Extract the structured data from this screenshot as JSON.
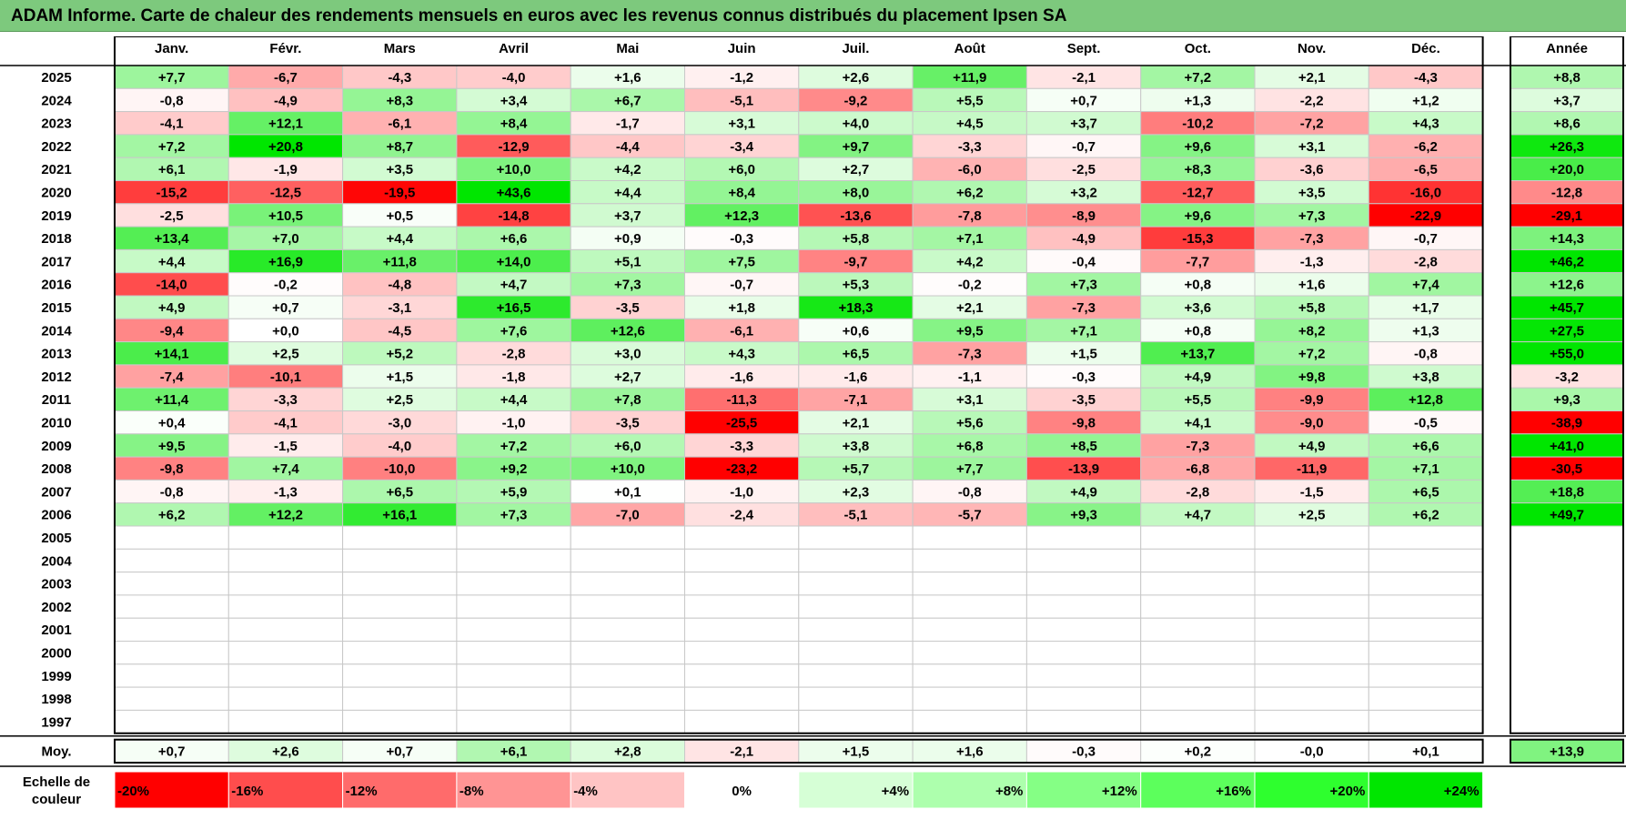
{
  "title": "ADAM Informe. Carte de chaleur des rendements mensuels en euros avec les revenus connus distribués du placement Ipsen SA",
  "chart_data": {
    "type": "heatmap",
    "months": [
      "Janv.",
      "Févr.",
      "Mars",
      "Avril",
      "Mai",
      "Juin",
      "Juil.",
      "Août",
      "Sept.",
      "Oct.",
      "Nov.",
      "Déc."
    ],
    "year_header": "Année",
    "rows": [
      {
        "year": "2025",
        "values": [
          "+7,7",
          "-6,7",
          "-4,3",
          "-4,0",
          "+1,6",
          "-1,2",
          "+2,6",
          "+11,9",
          "-2,1",
          "+7,2",
          "+2,1",
          "-4,3"
        ],
        "total": "+8,8"
      },
      {
        "year": "2024",
        "values": [
          "-0,8",
          "-4,9",
          "+8,3",
          "+3,4",
          "+6,7",
          "-5,1",
          "-9,2",
          "+5,5",
          "+0,7",
          "+1,3",
          "-2,2",
          "+1,2"
        ],
        "total": "+3,7"
      },
      {
        "year": "2023",
        "values": [
          "-4,1",
          "+12,1",
          "-6,1",
          "+8,4",
          "-1,7",
          "+3,1",
          "+4,0",
          "+4,5",
          "+3,7",
          "-10,2",
          "-7,2",
          "+4,3"
        ],
        "total": "+8,6"
      },
      {
        "year": "2022",
        "values": [
          "+7,2",
          "+20,8",
          "+8,7",
          "-12,9",
          "-4,4",
          "-3,4",
          "+9,7",
          "-3,3",
          "-0,7",
          "+9,6",
          "+3,1",
          "-6,2"
        ],
        "total": "+26,3"
      },
      {
        "year": "2021",
        "values": [
          "+6,1",
          "-1,9",
          "+3,5",
          "+10,0",
          "+4,2",
          "+6,0",
          "+2,7",
          "-6,0",
          "-2,5",
          "+8,3",
          "-3,6",
          "-6,5"
        ],
        "total": "+20,0"
      },
      {
        "year": "2020",
        "values": [
          "-15,2",
          "-12,5",
          "-19,5",
          "+43,6",
          "+4,4",
          "+8,4",
          "+8,0",
          "+6,2",
          "+3,2",
          "-12,7",
          "+3,5",
          "-16,0"
        ],
        "total": "-12,8"
      },
      {
        "year": "2019",
        "values": [
          "-2,5",
          "+10,5",
          "+0,5",
          "-14,8",
          "+3,7",
          "+12,3",
          "-13,6",
          "-7,8",
          "-8,9",
          "+9,6",
          "+7,3",
          "-22,9"
        ],
        "total": "-29,1"
      },
      {
        "year": "2018",
        "values": [
          "+13,4",
          "+7,0",
          "+4,4",
          "+6,6",
          "+0,9",
          "-0,3",
          "+5,8",
          "+7,1",
          "-4,9",
          "-15,3",
          "-7,3",
          "-0,7"
        ],
        "total": "+14,3"
      },
      {
        "year": "2017",
        "values": [
          "+4,4",
          "+16,9",
          "+11,8",
          "+14,0",
          "+5,1",
          "+7,5",
          "-9,7",
          "+4,2",
          "-0,4",
          "-7,7",
          "-1,3",
          "-2,8"
        ],
        "total": "+46,2"
      },
      {
        "year": "2016",
        "values": [
          "-14,0",
          "-0,2",
          "-4,8",
          "+4,7",
          "+7,3",
          "-0,7",
          "+5,3",
          "-0,2",
          "+7,3",
          "+0,8",
          "+1,6",
          "+7,4"
        ],
        "total": "+12,6"
      },
      {
        "year": "2015",
        "values": [
          "+4,9",
          "+0,7",
          "-3,1",
          "+16,5",
          "-3,5",
          "+1,8",
          "+18,3",
          "+2,1",
          "-7,3",
          "+3,6",
          "+5,8",
          "+1,7"
        ],
        "total": "+45,7"
      },
      {
        "year": "2014",
        "values": [
          "-9,4",
          "+0,0",
          "-4,5",
          "+7,6",
          "+12,6",
          "-6,1",
          "+0,6",
          "+9,5",
          "+7,1",
          "+0,8",
          "+8,2",
          "+1,3"
        ],
        "total": "+27,5"
      },
      {
        "year": "2013",
        "values": [
          "+14,1",
          "+2,5",
          "+5,2",
          "-2,8",
          "+3,0",
          "+4,3",
          "+6,5",
          "-7,3",
          "+1,5",
          "+13,7",
          "+7,2",
          "-0,8"
        ],
        "total": "+55,0"
      },
      {
        "year": "2012",
        "values": [
          "-7,4",
          "-10,1",
          "+1,5",
          "-1,8",
          "+2,7",
          "-1,6",
          "-1,6",
          "-1,1",
          "-0,3",
          "+4,9",
          "+9,8",
          "+3,8"
        ],
        "total": "-3,2"
      },
      {
        "year": "2011",
        "values": [
          "+11,4",
          "-3,3",
          "+2,5",
          "+4,4",
          "+7,8",
          "-11,3",
          "-7,1",
          "+3,1",
          "-3,5",
          "+5,5",
          "-9,9",
          "+12,8"
        ],
        "total": "+9,3"
      },
      {
        "year": "2010",
        "values": [
          "+0,4",
          "-4,1",
          "-3,0",
          "-1,0",
          "-3,5",
          "-25,5",
          "+2,1",
          "+5,6",
          "-9,8",
          "+4,1",
          "-9,0",
          "-0,5"
        ],
        "total": "-38,9"
      },
      {
        "year": "2009",
        "values": [
          "+9,5",
          "-1,5",
          "-4,0",
          "+7,2",
          "+6,0",
          "-3,3",
          "+3,8",
          "+6,8",
          "+8,5",
          "-7,3",
          "+4,9",
          "+6,6"
        ],
        "total": "+41,0"
      },
      {
        "year": "2008",
        "values": [
          "-9,8",
          "+7,4",
          "-10,0",
          "+9,2",
          "+10,0",
          "-23,2",
          "+5,7",
          "+7,7",
          "-13,9",
          "-6,8",
          "-11,9",
          "+7,1"
        ],
        "total": "-30,5"
      },
      {
        "year": "2007",
        "values": [
          "-0,8",
          "-1,3",
          "+6,5",
          "+5,9",
          "+0,1",
          "-1,0",
          "+2,3",
          "-0,8",
          "+4,9",
          "-2,8",
          "-1,5",
          "+6,5"
        ],
        "total": "+18,8"
      },
      {
        "year": "2006",
        "values": [
          "+6,2",
          "+12,2",
          "+16,1",
          "+7,3",
          "-7,0",
          "-2,4",
          "-5,1",
          "-5,7",
          "+9,3",
          "+4,7",
          "+2,5",
          "+6,2"
        ],
        "total": "+49,7"
      },
      {
        "year": "2005",
        "values": [
          "",
          "",
          "",
          "",
          "",
          "",
          "",
          "",
          "",
          "",
          "",
          ""
        ],
        "total": ""
      },
      {
        "year": "2004",
        "values": [
          "",
          "",
          "",
          "",
          "",
          "",
          "",
          "",
          "",
          "",
          "",
          ""
        ],
        "total": ""
      },
      {
        "year": "2003",
        "values": [
          "",
          "",
          "",
          "",
          "",
          "",
          "",
          "",
          "",
          "",
          "",
          ""
        ],
        "total": ""
      },
      {
        "year": "2002",
        "values": [
          "",
          "",
          "",
          "",
          "",
          "",
          "",
          "",
          "",
          "",
          "",
          ""
        ],
        "total": ""
      },
      {
        "year": "2001",
        "values": [
          "",
          "",
          "",
          "",
          "",
          "",
          "",
          "",
          "",
          "",
          "",
          ""
        ],
        "total": ""
      },
      {
        "year": "2000",
        "values": [
          "",
          "",
          "",
          "",
          "",
          "",
          "",
          "",
          "",
          "",
          "",
          ""
        ],
        "total": ""
      },
      {
        "year": "1999",
        "values": [
          "",
          "",
          "",
          "",
          "",
          "",
          "",
          "",
          "",
          "",
          "",
          ""
        ],
        "total": ""
      },
      {
        "year": "1998",
        "values": [
          "",
          "",
          "",
          "",
          "",
          "",
          "",
          "",
          "",
          "",
          "",
          ""
        ],
        "total": ""
      },
      {
        "year": "1997",
        "values": [
          "",
          "",
          "",
          "",
          "",
          "",
          "",
          "",
          "",
          "",
          "",
          ""
        ],
        "total": ""
      }
    ],
    "average": {
      "label": "Moy.",
      "values": [
        "+0,7",
        "+2,6",
        "+0,7",
        "+6,1",
        "+2,8",
        "-2,1",
        "+1,5",
        "+1,6",
        "-0,3",
        "+0,2",
        "-0,0",
        "+0,1"
      ],
      "total": "+13,9"
    },
    "color_scale": {
      "label_line1": "Echelle de",
      "label_line2": "couleur",
      "steps": [
        "-20%",
        "-16%",
        "-12%",
        "-8%",
        "-4%",
        "0%",
        "+4%",
        "+8%",
        "+12%",
        "+16%",
        "+20%",
        "+24%"
      ],
      "colors": [
        "#ff0000",
        "#ff4d4d",
        "#ff6b6b",
        "#ff9494",
        "#ffc4c4",
        "#ffffff",
        "#d6ffd6",
        "#adffad",
        "#85ff85",
        "#5cff5c",
        "#2eff2e",
        "#00e600"
      ]
    }
  }
}
